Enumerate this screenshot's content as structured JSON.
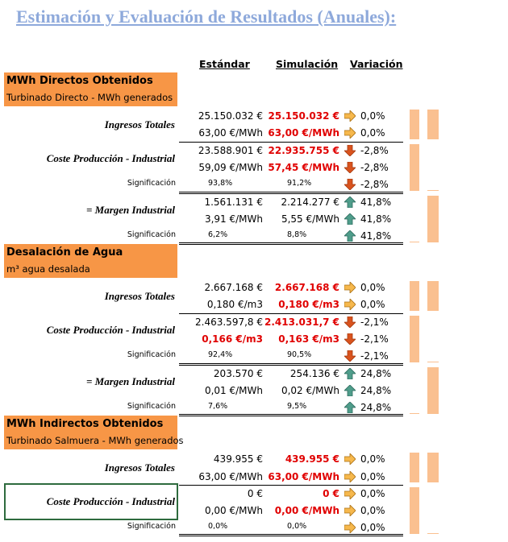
{
  "title": "Estimación y Evaluación de Resultados (Anuales):",
  "headers": [
    "Estándar",
    "Simulación",
    "Variación"
  ],
  "sections": [
    {
      "title": "MWh Directos Obtenidos",
      "subtitle": "Turbinado Directo - MWh generados",
      "groups": [
        {
          "label": "Ingresos Totales",
          "rows": [
            {
              "std": "25.150.032 €",
              "sim": "25.150.032 €",
              "var": "0,0%",
              "arrow": "flat",
              "red": [
                false,
                true
              ]
            },
            {
              "std": "63,00 €/MWh",
              "sim": "63,00 €/MWh",
              "var": "0,0%",
              "arrow": "flat",
              "red": [
                false,
                true
              ]
            }
          ]
        },
        {
          "label": "Coste Producción - Industrial",
          "rows": [
            {
              "std": "23.588.901 €",
              "sim": "22.935.755 €",
              "var": "-2,8%",
              "arrow": "down",
              "red": [
                false,
                true
              ]
            },
            {
              "std": "59,09 €/MWh",
              "sim": "57,45 €/MWh",
              "var": "-2,8%",
              "arrow": "down",
              "red": [
                false,
                true
              ]
            }
          ],
          "significance": {
            "label": "Significación",
            "std": "93,8%",
            "sim": "91,2%",
            "var": "-2,8%",
            "arrow": "down"
          }
        },
        {
          "label": "= Margen Industrial",
          "rows": [
            {
              "std": "1.561.131 €",
              "sim": "2.214.277 €",
              "var": "41,8%",
              "arrow": "up",
              "red": [
                false,
                false
              ]
            },
            {
              "std": "3,91 €/MWh",
              "sim": "5,55 €/MWh",
              "var": "41,8%",
              "arrow": "up",
              "red": [
                false,
                false
              ]
            }
          ],
          "significance": {
            "label": "Significación",
            "std": "6,2%",
            "sim": "8,8%",
            "var": "41,8%",
            "arrow": "up"
          }
        }
      ]
    },
    {
      "title": "Desalación de Agua",
      "subtitle": "m³ agua desalada",
      "groups": [
        {
          "label": "Ingresos Totales",
          "rows": [
            {
              "std": "2.667.168 €",
              "sim": "2.667.168 €",
              "var": "0,0%",
              "arrow": "flat",
              "red": [
                false,
                true
              ]
            },
            {
              "std": "0,180 €/m3",
              "sim": "0,180 €/m3",
              "var": "0,0%",
              "arrow": "flat",
              "red": [
                false,
                true
              ]
            }
          ]
        },
        {
          "label": "Coste Producción - Industrial",
          "rows": [
            {
              "std": "2.463.597,8 €",
              "sim": "2.413.031,7 €",
              "var": "-2,1%",
              "arrow": "down",
              "red": [
                false,
                true
              ]
            },
            {
              "std": "0,166 €/m3",
              "sim": "0,163 €/m3",
              "var": "-2,1%",
              "arrow": "down",
              "red": [
                true,
                true
              ]
            }
          ],
          "significance": {
            "label": "Significación",
            "std": "92,4%",
            "sim": "90,5%",
            "var": "-2,1%",
            "arrow": "down"
          }
        },
        {
          "label": "= Margen Industrial",
          "rows": [
            {
              "std": "203.570 €",
              "sim": "254.136 €",
              "var": "24,8%",
              "arrow": "up",
              "red": [
                false,
                false
              ]
            },
            {
              "std": "0,01 €/MWh",
              "sim": "0,02 €/MWh",
              "var": "24,8%",
              "arrow": "up",
              "red": [
                false,
                false
              ]
            }
          ],
          "significance": {
            "label": "Significación",
            "std": "7,6%",
            "sim": "9,5%",
            "var": "24,8%",
            "arrow": "up"
          }
        }
      ]
    },
    {
      "title": "MWh Indirectos Obtenidos",
      "subtitle": "Turbinado Salmuera - MWh generados",
      "groups": [
        {
          "label": "Ingresos Totales",
          "rows": [
            {
              "std": "439.955 €",
              "sim": "439.955 €",
              "var": "0,0%",
              "arrow": "flat",
              "red": [
                false,
                true
              ]
            },
            {
              "std": "63,00 €/MWh",
              "sim": "63,00 €/MWh",
              "var": "0,0%",
              "arrow": "flat",
              "red": [
                false,
                true
              ]
            }
          ]
        },
        {
          "label": "Coste Producción - Industrial",
          "rows": [
            {
              "std": "0 €",
              "sim": "0 €",
              "var": "0,0%",
              "arrow": "flat",
              "red": [
                false,
                true
              ]
            },
            {
              "std": "0,00 €/MWh",
              "sim": "0,00 €/MWh",
              "var": "0,0%",
              "arrow": "flat",
              "red": [
                false,
                true
              ]
            }
          ],
          "significance": {
            "label": "Significación",
            "std": "0,0%",
            "sim": "0,0%",
            "var": "0,0%",
            "arrow": "flat"
          }
        }
      ]
    }
  ]
}
